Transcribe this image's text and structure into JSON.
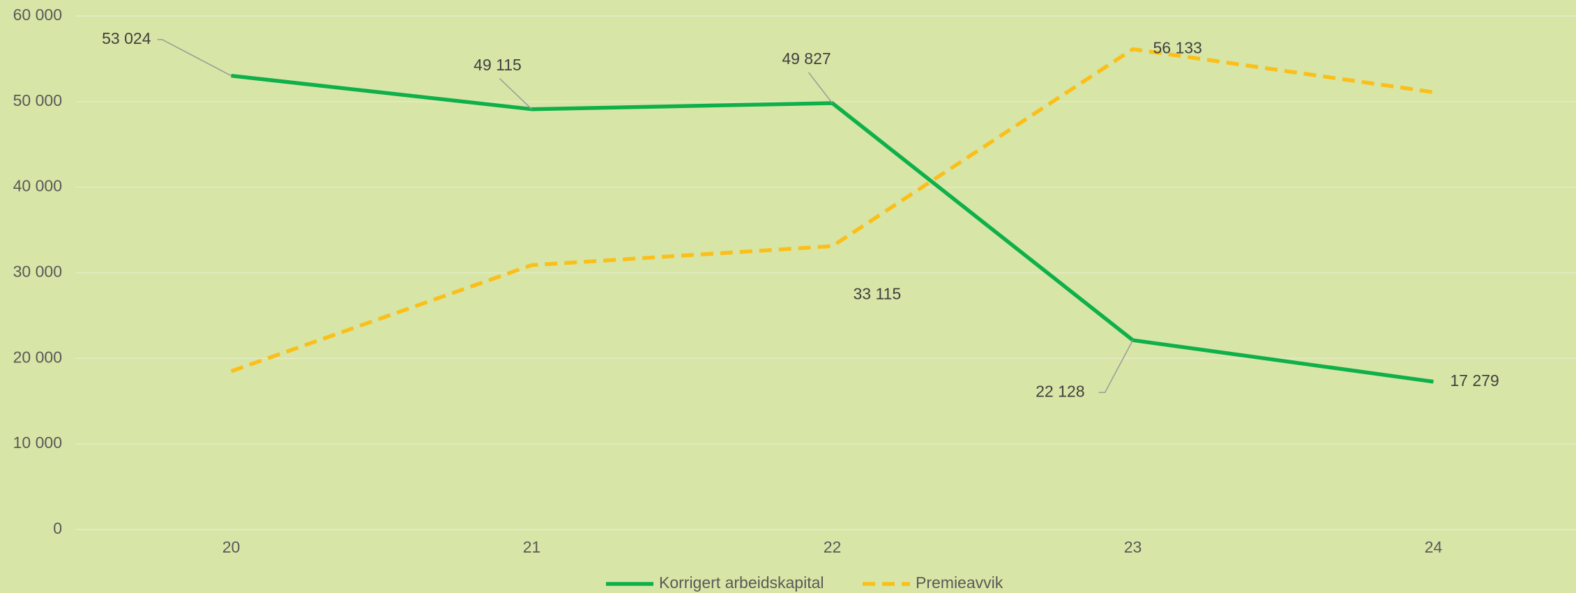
{
  "chart_data": {
    "type": "line",
    "categories": [
      "20",
      "21",
      "22",
      "23",
      "24"
    ],
    "series": [
      {
        "name": "Korrigert arbeidskapital",
        "color": "#0fb04a",
        "dash": false,
        "values": [
          53024,
          49115,
          49827,
          22128,
          17279
        ],
        "value_labels": [
          "53 024",
          "49 115",
          "49 827",
          "22 128",
          "17 279"
        ]
      },
      {
        "name": "Premieavvik",
        "color": "#fbbf1a",
        "dash": true,
        "values": [
          18500,
          30900,
          33115,
          56133,
          51100
        ],
        "value_labels": [
          null,
          null,
          "33 115",
          "56 133",
          null
        ]
      }
    ],
    "ylim": [
      0,
      60000
    ],
    "yticks": [
      0,
      {
        "value": 10000,
        "label": "10 000"
      },
      {
        "value": 20000,
        "label": "20 000"
      },
      {
        "value": 30000,
        "label": "30 000"
      },
      {
        "value": 40000,
        "label": "40 000"
      },
      {
        "value": 50000,
        "label": "50 000"
      },
      {
        "value": 60000,
        "label": "60 000"
      }
    ],
    "grid": true,
    "legend": "bottom"
  }
}
